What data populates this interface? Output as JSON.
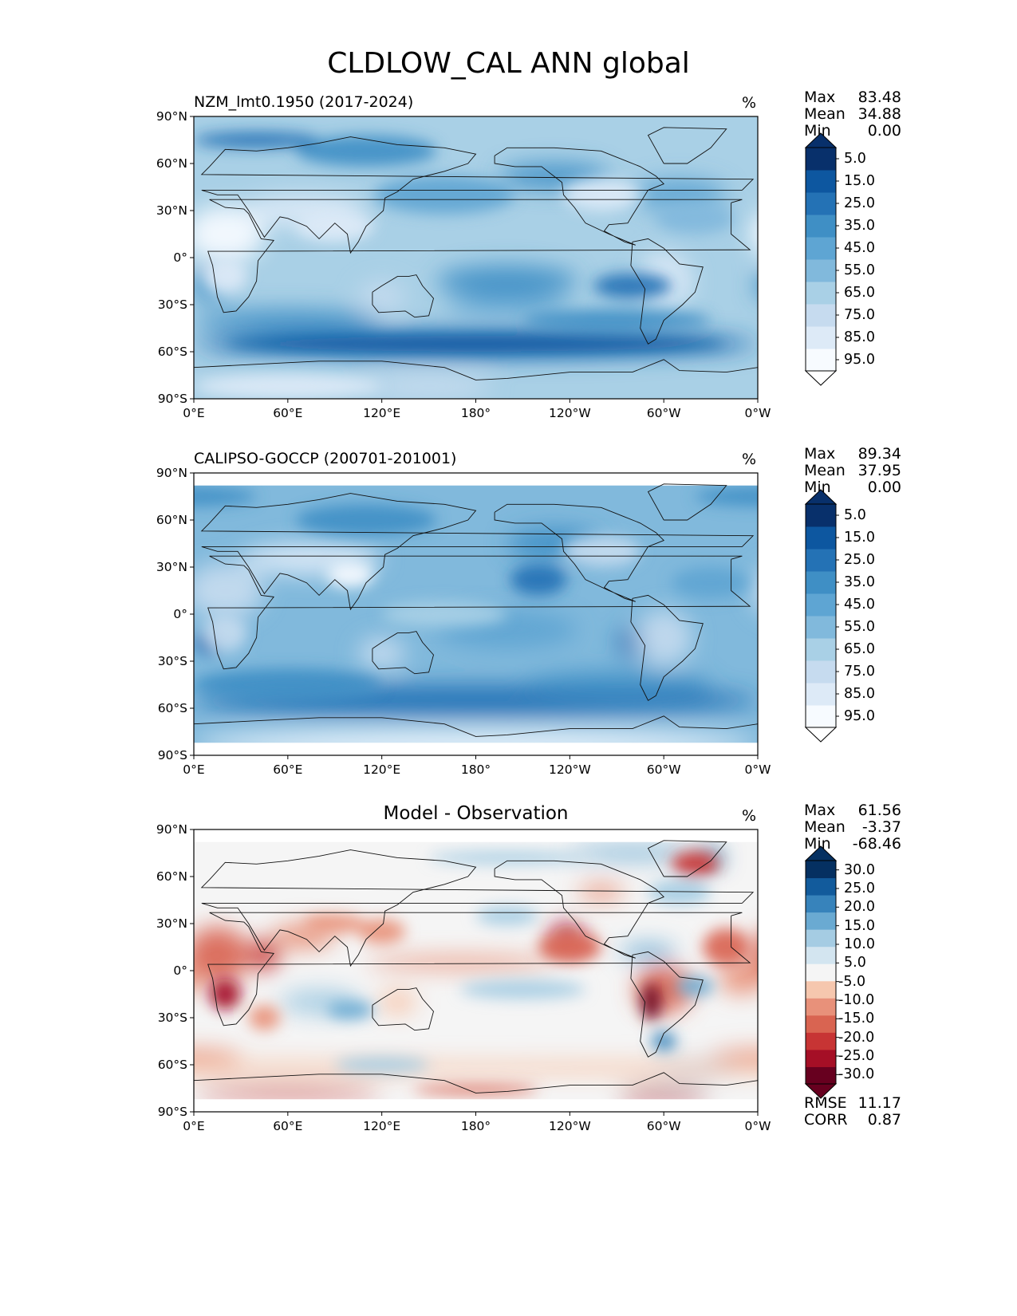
{
  "figure": {
    "title": "CLDLOW_CAL ANN global"
  },
  "chart_data": [
    {
      "type": "contour-map",
      "title": "NZM_lmt0.1950 (2017-2024)",
      "units": "%",
      "stats": {
        "max": "83.48",
        "mean": "34.88",
        "min": "0.00"
      },
      "stat_labels": {
        "max": "Max",
        "mean": "Mean",
        "min": "Min"
      },
      "lat_ticks": [
        "90°N",
        "60°N",
        "30°N",
        "0°",
        "30°S",
        "60°S",
        "90°S"
      ],
      "lon_ticks": [
        "0°E",
        "60°E",
        "120°E",
        "180°",
        "120°W",
        "60°W",
        "0°W"
      ],
      "colorbar": {
        "levels": [
          0,
          10,
          20,
          30,
          40,
          50,
          60,
          70,
          80,
          90,
          100
        ],
        "tick_labels": [
          "5.0",
          "15.0",
          "25.0",
          "35.0",
          "45.0",
          "55.0",
          "65.0",
          "75.0",
          "85.0",
          "95.0"
        ],
        "colors": [
          "#f7fbff",
          "#ddeaf7",
          "#c6dbef",
          "#a9d0e6",
          "#81b9dc",
          "#5ea5d3",
          "#3f8fc5",
          "#2472b5",
          "#0d57a0",
          "#08306b"
        ],
        "extend_low": "#ffffff",
        "extend_high": "#08306b"
      }
    },
    {
      "type": "contour-map",
      "title": "CALIPSO-GOCCP (200701-201001)",
      "units": "%",
      "stats": {
        "max": "89.34",
        "mean": "37.95",
        "min": "0.00"
      },
      "stat_labels": {
        "max": "Max",
        "mean": "Mean",
        "min": "Min"
      },
      "lat_ticks": [
        "90°N",
        "60°N",
        "30°N",
        "0°",
        "30°S",
        "60°S",
        "90°S"
      ],
      "lon_ticks": [
        "0°E",
        "60°E",
        "120°E",
        "180°",
        "120°W",
        "60°W",
        "0°W"
      ],
      "colorbar": {
        "levels": [
          0,
          10,
          20,
          30,
          40,
          50,
          60,
          70,
          80,
          90,
          100
        ],
        "tick_labels": [
          "5.0",
          "15.0",
          "25.0",
          "35.0",
          "45.0",
          "55.0",
          "65.0",
          "75.0",
          "85.0",
          "95.0"
        ],
        "colors": [
          "#f7fbff",
          "#ddeaf7",
          "#c6dbef",
          "#a9d0e6",
          "#81b9dc",
          "#5ea5d3",
          "#3f8fc5",
          "#2472b5",
          "#0d57a0",
          "#08306b"
        ],
        "extend_low": "#ffffff",
        "extend_high": "#08306b"
      }
    },
    {
      "type": "contour-map",
      "title": "Model - Observation",
      "units": "%",
      "stats": {
        "max": "61.56",
        "mean": "-3.37",
        "min": "-68.46"
      },
      "stat_labels": {
        "max": "Max",
        "mean": "Mean",
        "min": "Min"
      },
      "extra_stats": {
        "rmse_label": "RMSE",
        "rmse": "11.17",
        "corr_label": "CORR",
        "corr": "0.87"
      },
      "lat_ticks": [
        "90°N",
        "60°N",
        "30°N",
        "0°",
        "30°S",
        "60°S",
        "90°S"
      ],
      "lon_ticks": [
        "0°E",
        "60°E",
        "120°E",
        "180°",
        "120°W",
        "60°W",
        "0°W"
      ],
      "colorbar": {
        "levels": [
          -35,
          -30,
          -25,
          -20,
          -15,
          -10,
          -5,
          5,
          10,
          15,
          20,
          25,
          30,
          35
        ],
        "tick_labels": [
          "30.0",
          "25.0",
          "20.0",
          "15.0",
          "10.0",
          "5.0",
          "-5.0",
          "-10.0",
          "-15.0",
          "-20.0",
          "-25.0",
          "-30.0"
        ],
        "colors": [
          "#67001f",
          "#a50f26",
          "#c73434",
          "#d96451",
          "#e8917a",
          "#f6c7ae",
          "#f5f5f5",
          "#d3e5f0",
          "#a5cce3",
          "#6aaad2",
          "#3783bb",
          "#125b9c",
          "#053061"
        ],
        "extend_low": "#67001f",
        "extend_high": "#053061"
      }
    }
  ]
}
